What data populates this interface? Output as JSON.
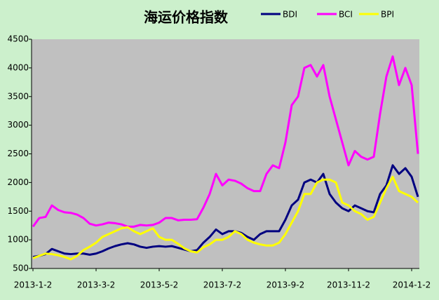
{
  "chart_data": {
    "type": "line",
    "title": "海运价格指数",
    "categories": [
      "2013-1-2",
      null,
      null,
      null,
      null,
      null,
      null,
      null,
      null,
      null,
      "2013-3-2",
      null,
      null,
      null,
      null,
      null,
      null,
      null,
      null,
      null,
      "2013-5-2",
      null,
      null,
      null,
      null,
      null,
      null,
      null,
      null,
      null,
      "2013-7-2",
      null,
      null,
      null,
      null,
      null,
      null,
      null,
      null,
      null,
      "2013-9-2",
      null,
      null,
      null,
      null,
      null,
      null,
      null,
      null,
      null,
      "2013-11-2",
      null,
      null,
      null,
      null,
      null,
      null,
      null,
      null,
      null,
      "2014-1-2",
      null
    ],
    "series": [
      {
        "name": "BDI",
        "color": "#000080",
        "values": [
          700,
          720,
          750,
          840,
          800,
          760,
          750,
          760,
          760,
          740,
          760,
          800,
          850,
          890,
          920,
          940,
          920,
          880,
          860,
          880,
          890,
          880,
          890,
          860,
          830,
          800,
          820,
          950,
          1050,
          1180,
          1100,
          1150,
          1150,
          1120,
          1050,
          1000,
          1100,
          1150,
          1150,
          1150,
          1350,
          1600,
          1700,
          2000,
          2050,
          2000,
          2150,
          1800,
          1650,
          1550,
          1500,
          1600,
          1550,
          1500,
          1480,
          1800,
          1950,
          2300,
          2150,
          2250,
          2100,
          1750
        ]
      },
      {
        "name": "BCI",
        "color": "#ff00ff",
        "values": [
          1230,
          1380,
          1400,
          1600,
          1520,
          1480,
          1470,
          1440,
          1380,
          1280,
          1250,
          1270,
          1300,
          1290,
          1270,
          1230,
          1230,
          1260,
          1250,
          1260,
          1300,
          1380,
          1380,
          1340,
          1350,
          1350,
          1360,
          1560,
          1800,
          2150,
          1950,
          2050,
          2030,
          1980,
          1900,
          1850,
          1850,
          2150,
          2300,
          2250,
          2700,
          3350,
          3500,
          4000,
          4050,
          3850,
          4050,
          3500,
          3100,
          2700,
          2300,
          2550,
          2450,
          2400,
          2450,
          3200,
          3850,
          4200,
          3700,
          4000,
          3700,
          2500
        ]
      },
      {
        "name": "BPI",
        "color": "#ffff00",
        "values": [
          680,
          720,
          760,
          750,
          730,
          700,
          660,
          720,
          820,
          880,
          950,
          1050,
          1100,
          1150,
          1200,
          1220,
          1150,
          1100,
          1150,
          1200,
          1050,
          1000,
          1000,
          930,
          850,
          800,
          780,
          870,
          920,
          1000,
          1000,
          1050,
          1150,
          1100,
          1000,
          950,
          920,
          900,
          900,
          950,
          1100,
          1300,
          1500,
          1800,
          1800,
          2000,
          2050,
          2050,
          2000,
          1650,
          1600,
          1500,
          1450,
          1350,
          1400,
          1650,
          1900,
          2100,
          1850,
          1800,
          1750,
          1650
        ]
      }
    ],
    "ylim": [
      500,
      4500
    ],
    "yticks": [
      500,
      1000,
      1500,
      2000,
      2500,
      3000,
      3500,
      4000,
      4500
    ],
    "grid": false,
    "legend": "top-right"
  }
}
